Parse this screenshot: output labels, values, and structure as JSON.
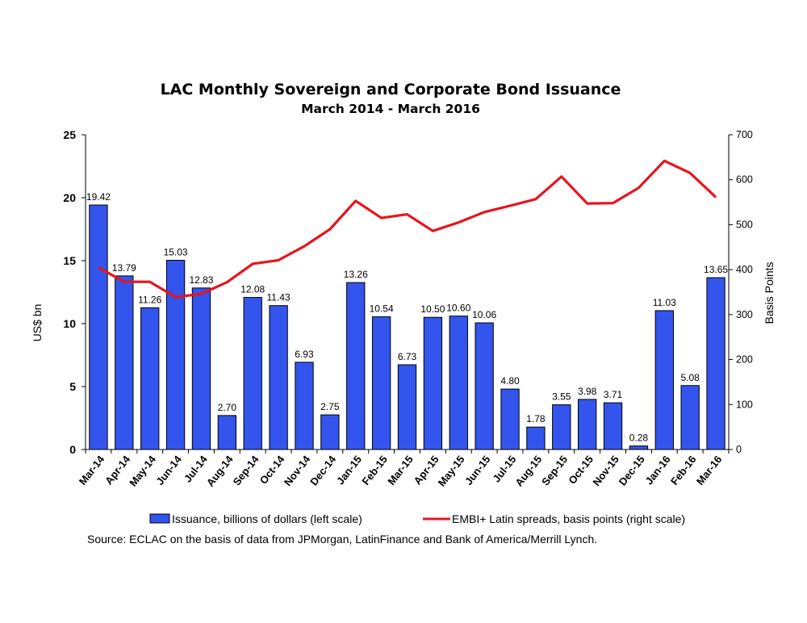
{
  "chart_data": {
    "type": "bar",
    "title": "LAC Monthly Sovereign and Corporate Bond Issuance",
    "subtitle": "March 2014 - March 2016",
    "ylabel": "US$ bn",
    "y2label": "Basis Points",
    "ylim": [
      0,
      25
    ],
    "y2lim": [
      0,
      700
    ],
    "yticks": [
      0,
      5,
      10,
      15,
      20,
      25
    ],
    "y2ticks": [
      0,
      100,
      200,
      300,
      400,
      500,
      600,
      700
    ],
    "categories": [
      "Mar-14",
      "Apr-14",
      "May-14",
      "Jun-14",
      "Jul-14",
      "Aug-14",
      "Sep-14",
      "Oct-14",
      "Nov-14",
      "Dec-14",
      "Jan-15",
      "Feb-15",
      "Mar-15",
      "Apr-15",
      "May-15",
      "Jun-15",
      "Jul-15",
      "Aug-15",
      "Sep-15",
      "Oct-15",
      "Nov-15",
      "Dec-15",
      "Jan-16",
      "Feb-16",
      "Mar-16"
    ],
    "series": [
      {
        "name": "Issuance, billions of dollars (left scale)",
        "type": "bar",
        "axis": "left",
        "color": "#3355ee",
        "values": [
          19.42,
          13.79,
          11.26,
          15.03,
          12.83,
          2.7,
          12.08,
          11.43,
          6.93,
          2.75,
          13.26,
          10.54,
          6.73,
          10.5,
          10.6,
          10.06,
          4.8,
          1.78,
          3.55,
          3.98,
          3.71,
          0.28,
          11.03,
          5.08,
          13.65
        ],
        "labels": [
          "19.42",
          "13.79",
          "11.26",
          "15.03",
          "12.83",
          "2.70",
          "12.08",
          "11.43",
          "6.93",
          "2.75",
          "13.26",
          "10.54",
          "6.73",
          "10.50",
          "10.60",
          "10.06",
          "4.80",
          "1.78",
          "3.55",
          "3.98",
          "3.71",
          "0.28",
          "11.03",
          "5.08",
          "13.65"
        ]
      },
      {
        "name": "EMBI+ Latin spreads, basis points (right scale)",
        "type": "line",
        "axis": "right",
        "color": "#e8141c",
        "values": [
          405,
          373,
          373,
          339,
          346,
          372,
          413,
          421,
          452,
          490,
          553,
          515,
          523,
          486,
          505,
          528,
          542,
          557,
          607,
          547,
          548,
          582,
          642,
          615,
          561
        ]
      }
    ],
    "legend_position": "bottom",
    "source": "Source: ECLAC on the basis of data from JPMorgan, LatinFinance and Bank of America/Merrill Lynch."
  }
}
